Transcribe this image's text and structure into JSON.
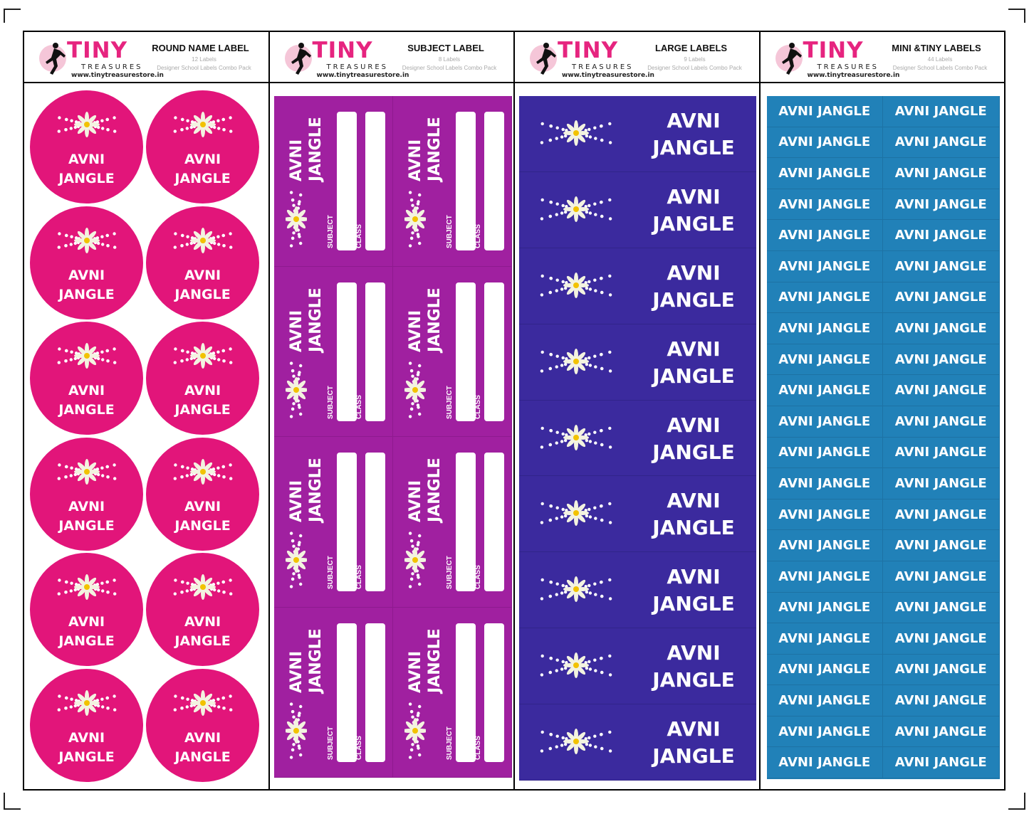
{
  "columns": [
    {
      "title": "ROUND NAME LABEL",
      "count": "12 Labels",
      "subtitle": "Designer School Labels Combo Pack"
    },
    {
      "title": "SUBJECT LABEL",
      "count": "8 Labels",
      "subtitle": "Designer School Labels Combo Pack"
    },
    {
      "title": "LARGE LABELS",
      "count": "9 Labels",
      "subtitle": "Designer School Labels Combo Pack"
    },
    {
      "title": "MINI &TINY LABELS",
      "count": "44 Labels",
      "subtitle": "Designer School Labels Combo Pack"
    }
  ],
  "brand": {
    "name": "TINY",
    "tagline": "TREASURES",
    "url": "www.tinytreasurestore.in"
  },
  "label": {
    "line1": "AVNI",
    "line2": "JANGLE",
    "full": "AVNI JANGLE",
    "subject": "SUBJECT",
    "class": "CLASS"
  },
  "colors": {
    "round": "#e2157a",
    "subject": "#a020a0",
    "large": "#3b2a9e",
    "mini": "#2181b8",
    "brand": "#e6247f"
  },
  "icons": {
    "logo": "running-girl-icon",
    "label_art": "daisy-dots-icon"
  }
}
